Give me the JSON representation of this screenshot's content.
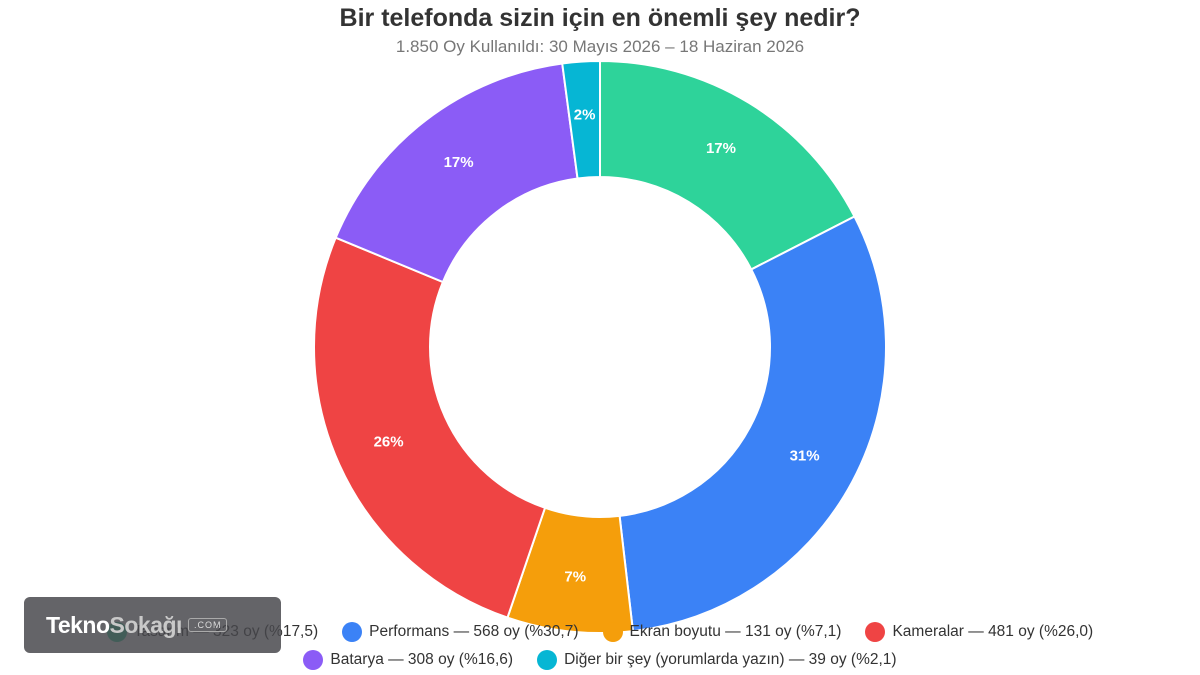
{
  "chart_data": {
    "type": "pie",
    "title": "Bir telefonda sizin için en önemli şey nedir?",
    "subtitle": "1.850 Oy Kullanıldı: 30 Mayıs 2026 – 18 Haziran 2026",
    "legend_position": "bottom",
    "series": [
      {
        "name": "Tasarım",
        "votes": 323,
        "percent": 17.5,
        "slice_label": "17%",
        "color": "#2ed39a",
        "legend_text": "Tasarım — 323 oy (%17,5)"
      },
      {
        "name": "Performans",
        "votes": 568,
        "percent": 30.7,
        "slice_label": "31%",
        "color": "#3b82f6",
        "legend_text": "Performans — 568 oy (%30,7)"
      },
      {
        "name": "Ekran boyutu",
        "votes": 131,
        "percent": 7.1,
        "slice_label": "7%",
        "color": "#f59e0b",
        "legend_text": "Ekran boyutu — 131 oy (%7,1)"
      },
      {
        "name": "Kameralar",
        "votes": 481,
        "percent": 26.0,
        "slice_label": "26%",
        "color": "#ef4444",
        "legend_text": "Kameralar — 481 oy (%26,0)"
      },
      {
        "name": "Batarya",
        "votes": 308,
        "percent": 16.6,
        "slice_label": "17%",
        "color": "#8b5cf6",
        "legend_text": "Batarya — 308 oy (%16,6)"
      },
      {
        "name": "Diğer bir şey (yorumlarda yazın)",
        "votes": 39,
        "percent": 2.1,
        "slice_label": "2%",
        "color": "#06b6d4",
        "legend_text": "Diğer bir şey (yorumlarda yazın) — 39 oy (%2,1)"
      }
    ]
  },
  "watermark": {
    "part1": "Tekno",
    "part2": "Sokağı",
    "suffix": ".COM"
  }
}
